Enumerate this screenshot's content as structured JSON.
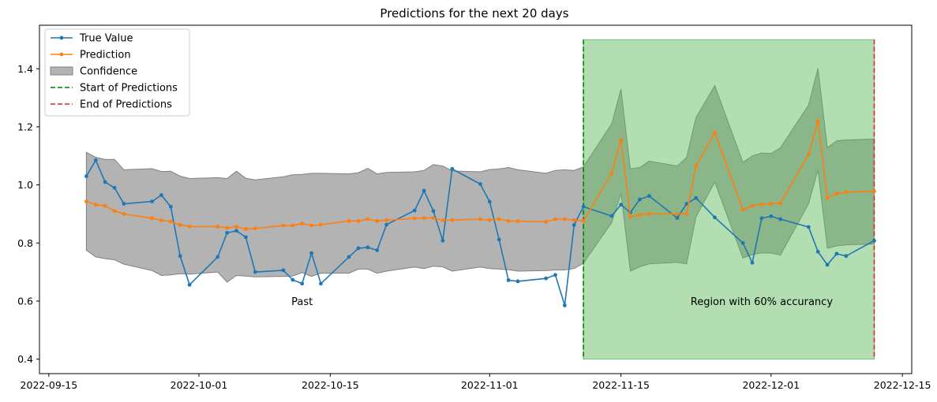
{
  "chart_data": {
    "type": "line",
    "title": "Predictions for the next 20 days",
    "xlabel": "",
    "ylabel": "",
    "xlim": [
      "2022-09-14",
      "2022-12-16"
    ],
    "ylim": [
      0.35,
      1.55
    ],
    "x_ticks": [
      "2022-09-15",
      "2022-10-01",
      "2022-10-15",
      "2022-11-01",
      "2022-11-15",
      "2022-12-01",
      "2022-12-15"
    ],
    "y_ticks": [
      0.4,
      0.6,
      0.8,
      1.0,
      1.2,
      1.4
    ],
    "y_tick_labels": [
      "0.4",
      "0.6",
      "0.8",
      "1.0",
      "1.2",
      "1.4"
    ],
    "grid": false,
    "legend_position": "top-left",
    "legend": [
      "True Value",
      "Prediction",
      "Confidence",
      "Start of Predictions",
      "End of Predictions"
    ],
    "colors": {
      "true_value": "#1f77b4",
      "prediction": "#ff7f0e",
      "confidence": "#808080",
      "start_line": "#008000",
      "end_line": "#d62728",
      "region": "#5cb85c"
    },
    "series": [
      {
        "name": "True Value",
        "points": [
          [
            "2022-09-19",
            1.03
          ],
          [
            "2022-09-20",
            1.085
          ],
          [
            "2022-09-21",
            1.01
          ],
          [
            "2022-09-22",
            0.99
          ],
          [
            "2022-09-23",
            0.935
          ],
          [
            "2022-09-26",
            0.943
          ],
          [
            "2022-09-27",
            0.965
          ],
          [
            "2022-09-28",
            0.925
          ],
          [
            "2022-09-29",
            0.755
          ],
          [
            "2022-09-30",
            0.656
          ],
          [
            "2022-10-03",
            0.752
          ],
          [
            "2022-10-04",
            0.835
          ],
          [
            "2022-10-05",
            0.842
          ],
          [
            "2022-10-06",
            0.82
          ],
          [
            "2022-10-07",
            0.7
          ],
          [
            "2022-10-10",
            0.706
          ],
          [
            "2022-10-11",
            0.673
          ],
          [
            "2022-10-12",
            0.66
          ],
          [
            "2022-10-13",
            0.765
          ],
          [
            "2022-10-14",
            0.66
          ],
          [
            "2022-10-17",
            0.752
          ],
          [
            "2022-10-18",
            0.782
          ],
          [
            "2022-10-19",
            0.785
          ],
          [
            "2022-10-20",
            0.775
          ],
          [
            "2022-10-21",
            0.863
          ],
          [
            "2022-10-24",
            0.912
          ],
          [
            "2022-10-25",
            0.98
          ],
          [
            "2022-10-26",
            0.91
          ],
          [
            "2022-10-27",
            0.808
          ],
          [
            "2022-10-28",
            1.055
          ],
          [
            "2022-10-31",
            1.003
          ],
          [
            "2022-11-01",
            0.942
          ],
          [
            "2022-11-02",
            0.812
          ],
          [
            "2022-11-03",
            0.672
          ],
          [
            "2022-11-04",
            0.668
          ],
          [
            "2022-11-07",
            0.678
          ],
          [
            "2022-11-08",
            0.69
          ],
          [
            "2022-11-09",
            0.585
          ],
          [
            "2022-11-10",
            0.862
          ],
          [
            "2022-11-11",
            0.925
          ],
          [
            "2022-11-14",
            0.893
          ],
          [
            "2022-11-15",
            0.932
          ],
          [
            "2022-11-16",
            0.905
          ],
          [
            "2022-11-17",
            0.95
          ],
          [
            "2022-11-18",
            0.962
          ],
          [
            "2022-11-21",
            0.886
          ],
          [
            "2022-11-22",
            0.935
          ],
          [
            "2022-11-23",
            0.955
          ],
          [
            "2022-11-25",
            0.888
          ],
          [
            "2022-11-28",
            0.8
          ],
          [
            "2022-11-29",
            0.732
          ],
          [
            "2022-11-30",
            0.885
          ],
          [
            "2022-12-01",
            0.892
          ],
          [
            "2022-12-02",
            0.882
          ],
          [
            "2022-12-05",
            0.855
          ],
          [
            "2022-12-06",
            0.77
          ],
          [
            "2022-12-07",
            0.725
          ],
          [
            "2022-12-08",
            0.763
          ],
          [
            "2022-12-09",
            0.755
          ],
          [
            "2022-12-12",
            0.808
          ]
        ]
      },
      {
        "name": "Prediction",
        "points": [
          [
            "2022-09-19",
            0.943
          ],
          [
            "2022-09-20",
            0.932
          ],
          [
            "2022-09-21",
            0.928
          ],
          [
            "2022-09-22",
            0.91
          ],
          [
            "2022-09-23",
            0.9
          ],
          [
            "2022-09-26",
            0.885
          ],
          [
            "2022-09-27",
            0.878
          ],
          [
            "2022-09-28",
            0.874
          ],
          [
            "2022-09-29",
            0.862
          ],
          [
            "2022-09-30",
            0.857
          ],
          [
            "2022-10-03",
            0.856
          ],
          [
            "2022-10-04",
            0.852
          ],
          [
            "2022-10-05",
            0.856
          ],
          [
            "2022-10-06",
            0.848
          ],
          [
            "2022-10-07",
            0.85
          ],
          [
            "2022-10-10",
            0.86
          ],
          [
            "2022-10-11",
            0.86
          ],
          [
            "2022-10-12",
            0.867
          ],
          [
            "2022-10-13",
            0.86
          ],
          [
            "2022-10-14",
            0.863
          ],
          [
            "2022-10-17",
            0.876
          ],
          [
            "2022-10-18",
            0.876
          ],
          [
            "2022-10-19",
            0.882
          ],
          [
            "2022-10-20",
            0.876
          ],
          [
            "2022-10-21",
            0.878
          ],
          [
            "2022-10-24",
            0.885
          ],
          [
            "2022-10-25",
            0.886
          ],
          [
            "2022-10-26",
            0.886
          ],
          [
            "2022-10-27",
            0.878
          ],
          [
            "2022-10-28",
            0.879
          ],
          [
            "2022-10-31",
            0.882
          ],
          [
            "2022-11-01",
            0.879
          ],
          [
            "2022-11-02",
            0.882
          ],
          [
            "2022-11-03",
            0.876
          ],
          [
            "2022-11-04",
            0.875
          ],
          [
            "2022-11-07",
            0.873
          ],
          [
            "2022-11-08",
            0.882
          ],
          [
            "2022-11-09",
            0.882
          ],
          [
            "2022-11-10",
            0.879
          ],
          [
            "2022-11-11",
            0.876
          ],
          [
            "2022-11-14",
            1.04
          ],
          [
            "2022-11-15",
            1.155
          ],
          [
            "2022-11-16",
            0.89
          ],
          [
            "2022-11-17",
            0.897
          ],
          [
            "2022-11-18",
            0.9
          ],
          [
            "2022-11-21",
            0.9
          ],
          [
            "2022-11-22",
            0.9
          ],
          [
            "2022-11-23",
            1.065
          ],
          [
            "2022-11-25",
            1.18
          ],
          [
            "2022-11-28",
            0.915
          ],
          [
            "2022-11-29",
            0.928
          ],
          [
            "2022-11-30",
            0.933
          ],
          [
            "2022-12-01",
            0.935
          ],
          [
            "2022-12-02",
            0.937
          ],
          [
            "2022-12-05",
            1.105
          ],
          [
            "2022-12-06",
            1.22
          ],
          [
            "2022-12-07",
            0.955
          ],
          [
            "2022-12-08",
            0.97
          ],
          [
            "2022-12-09",
            0.975
          ],
          [
            "2022-12-12",
            0.978
          ]
        ]
      }
    ],
    "confidence_band": [
      [
        "2022-09-19",
        0.775,
        1.112
      ],
      [
        "2022-09-20",
        0.752,
        1.095
      ],
      [
        "2022-09-21",
        0.746,
        1.088
      ],
      [
        "2022-09-22",
        0.742,
        1.088
      ],
      [
        "2022-09-23",
        0.727,
        1.052
      ],
      [
        "2022-09-26",
        0.705,
        1.056
      ],
      [
        "2022-09-27",
        0.688,
        1.046
      ],
      [
        "2022-09-28",
        0.69,
        1.047
      ],
      [
        "2022-09-29",
        0.694,
        1.03
      ],
      [
        "2022-09-30",
        0.693,
        1.022
      ],
      [
        "2022-10-03",
        0.7,
        1.025
      ],
      [
        "2022-10-04",
        0.665,
        1.022
      ],
      [
        "2022-10-05",
        0.688,
        1.047
      ],
      [
        "2022-10-06",
        0.686,
        1.023
      ],
      [
        "2022-10-07",
        0.683,
        1.017
      ],
      [
        "2022-10-10",
        0.685,
        1.028
      ],
      [
        "2022-10-11",
        0.686,
        1.035
      ],
      [
        "2022-10-12",
        0.698,
        1.036
      ],
      [
        "2022-10-13",
        0.685,
        1.04
      ],
      [
        "2022-10-14",
        0.696,
        1.04
      ],
      [
        "2022-10-17",
        0.696,
        1.038
      ],
      [
        "2022-10-18",
        0.71,
        1.042
      ],
      [
        "2022-10-19",
        0.71,
        1.057
      ],
      [
        "2022-10-20",
        0.696,
        1.038
      ],
      [
        "2022-10-21",
        0.703,
        1.043
      ],
      [
        "2022-10-24",
        0.717,
        1.045
      ],
      [
        "2022-10-25",
        0.712,
        1.05
      ],
      [
        "2022-10-26",
        0.72,
        1.07
      ],
      [
        "2022-10-27",
        0.718,
        1.065
      ],
      [
        "2022-10-28",
        0.703,
        1.048
      ],
      [
        "2022-10-31",
        0.717,
        1.045
      ],
      [
        "2022-11-01",
        0.712,
        1.053
      ],
      [
        "2022-11-02",
        0.71,
        1.055
      ],
      [
        "2022-11-03",
        0.708,
        1.06
      ],
      [
        "2022-11-04",
        0.703,
        1.052
      ],
      [
        "2022-11-07",
        0.705,
        1.04
      ],
      [
        "2022-11-08",
        0.707,
        1.05
      ],
      [
        "2022-11-09",
        0.707,
        1.052
      ],
      [
        "2022-11-10",
        0.712,
        1.05
      ],
      [
        "2022-11-11",
        0.73,
        1.062
      ],
      [
        "2022-11-14",
        0.87,
        1.21
      ],
      [
        "2022-11-15",
        0.97,
        1.33
      ],
      [
        "2022-11-16",
        0.703,
        1.055
      ],
      [
        "2022-11-17",
        0.718,
        1.06
      ],
      [
        "2022-11-18",
        0.728,
        1.082
      ],
      [
        "2022-11-21",
        0.733,
        1.065
      ],
      [
        "2022-11-22",
        0.728,
        1.095
      ],
      [
        "2022-11-23",
        0.89,
        1.232
      ],
      [
        "2022-11-25",
        1.01,
        1.342
      ],
      [
        "2022-11-28",
        0.748,
        1.078
      ],
      [
        "2022-11-29",
        0.76,
        1.1
      ],
      [
        "2022-11-30",
        0.766,
        1.11
      ],
      [
        "2022-12-01",
        0.765,
        1.108
      ],
      [
        "2022-12-02",
        0.758,
        1.128
      ],
      [
        "2022-12-05",
        0.935,
        1.275
      ],
      [
        "2022-12-06",
        1.052,
        1.402
      ],
      [
        "2022-12-07",
        0.782,
        1.128
      ],
      [
        "2022-12-08",
        0.79,
        1.152
      ],
      [
        "2022-12-09",
        0.793,
        1.155
      ],
      [
        "2022-12-12",
        0.797,
        1.158
      ]
    ],
    "vertical_lines": [
      {
        "name": "Start of Predictions",
        "x": "2022-11-11"
      },
      {
        "name": "End of Predictions",
        "x": "2022-12-12"
      }
    ],
    "shaded_region": {
      "x_start": "2022-11-11",
      "x_end": "2022-12-12",
      "y_min": 0.4,
      "y_max": 1.5
    },
    "annotations": [
      {
        "text": "Past",
        "x": "2022-10-12",
        "y": 0.6
      },
      {
        "text": "Region with 60% accurancy",
        "x": "2022-11-30",
        "y": 0.6
      }
    ]
  }
}
